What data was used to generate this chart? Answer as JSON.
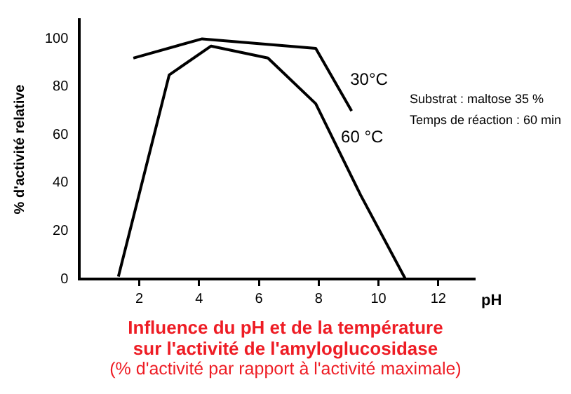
{
  "chart_data": {
    "type": "line",
    "title": "Influence du pH et de la température\nsur l'activité de l'amyloglucosidase",
    "subtitle": "(% d'activité par rapport à l'activité maximale)",
    "xlabel": "pH",
    "ylabel": "% d'activité relative",
    "annotations": [
      "Substrat : maltose 35 %",
      "Temps de réaction : 60 min"
    ],
    "series": [
      {
        "name": "30°C",
        "color": "#000000",
        "x": [
          1.8,
          4.1,
          7.9,
          9.1
        ],
        "values": [
          92,
          100,
          96,
          70
        ]
      },
      {
        "name": "60 °C",
        "color": "#000000",
        "x": [
          1.3,
          3.0,
          4.4,
          6.3,
          7.9,
          9.4,
          10.9
        ],
        "values": [
          1,
          85,
          97,
          92,
          73,
          35,
          0
        ]
      }
    ],
    "xlim": [
      0,
      13.2
    ],
    "xticks": [
      2,
      4,
      6,
      8,
      10,
      12
    ],
    "ylim": [
      0,
      108
    ],
    "yticks": [
      0,
      20,
      40,
      60,
      80,
      100
    ],
    "grid": false,
    "legend": false,
    "marker": "none",
    "line_style": "solid"
  }
}
